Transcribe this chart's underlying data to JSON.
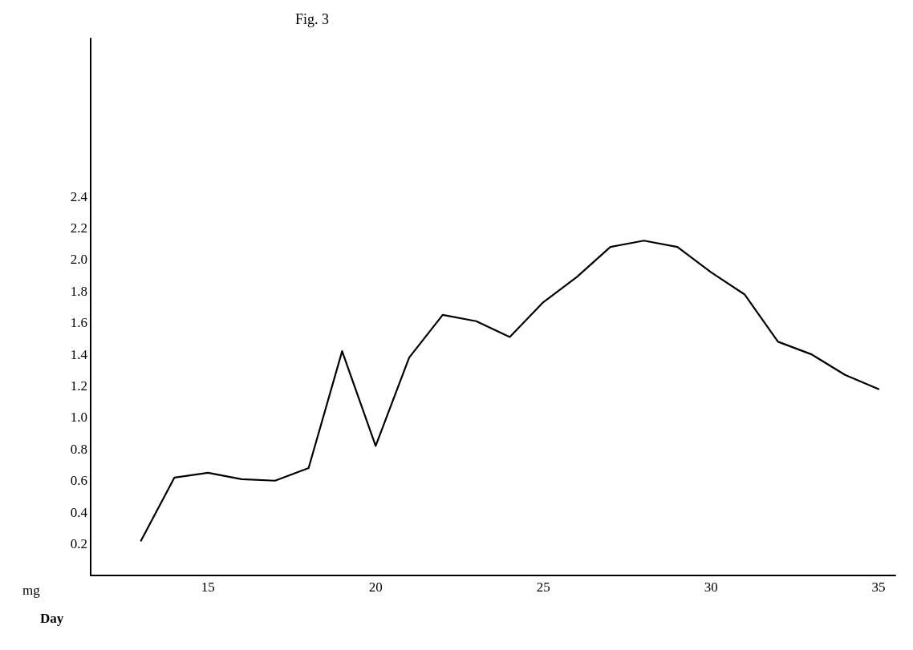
{
  "chart_data": {
    "type": "line",
    "title": "Fig. 3",
    "xlabel": "Day",
    "ylabel": "mg",
    "x": [
      13,
      14,
      15,
      16,
      17,
      18,
      19,
      20,
      21,
      22,
      23,
      24,
      25,
      26,
      27,
      28,
      29,
      30,
      31,
      32,
      33,
      34,
      35
    ],
    "series": [
      {
        "color": "#000000",
        "values": [
          0.22,
          0.62,
          0.65,
          0.61,
          0.6,
          0.68,
          1.42,
          0.82,
          1.38,
          1.65,
          1.61,
          1.51,
          1.73,
          1.89,
          2.08,
          2.12,
          2.08,
          1.92,
          1.78,
          1.48,
          1.4,
          1.27,
          1.18
        ]
      }
    ],
    "xlim": [
      11.5,
      35.5
    ],
    "xticks": [
      15,
      20,
      25,
      30,
      35
    ],
    "ylim": [
      0,
      3.4
    ],
    "yticks": [
      0.2,
      0.4,
      0.6,
      0.8,
      {
        "value": 1,
        "label": "1.0"
      },
      1.2,
      1.4,
      1.6,
      1.8,
      {
        "value": 2,
        "label": "2.0"
      },
      2.2,
      2.4
    ],
    "grid": false,
    "marker": "none",
    "line_style": "solid"
  }
}
